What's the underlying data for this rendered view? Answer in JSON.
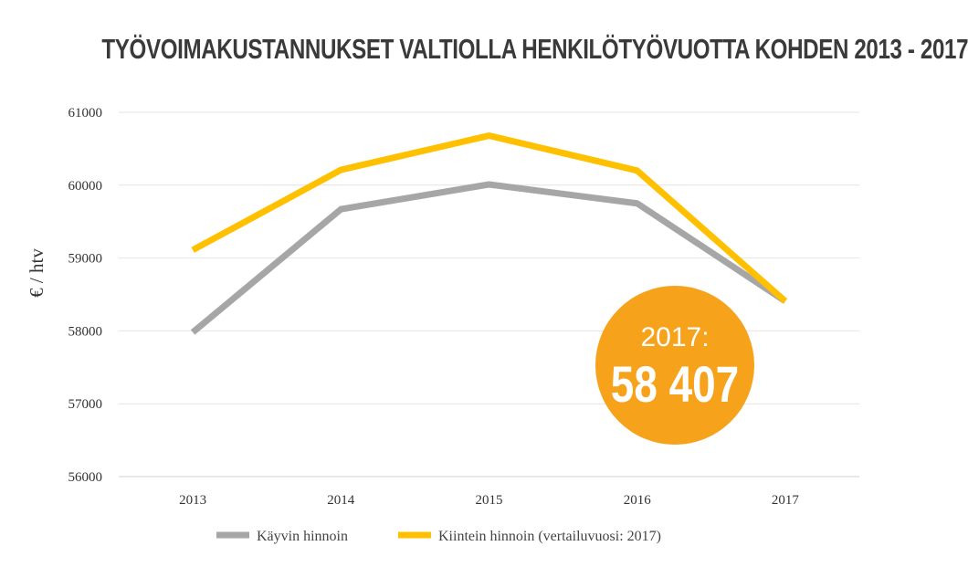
{
  "chart_data": {
    "type": "line",
    "title": "TYÖVOIMAKUSTANNUKSET VALTIOLLA HENKILÖTYÖVUOTTA KOHDEN 2013 - 2017",
    "xlabel": "",
    "ylabel": "€ / htv",
    "categories": [
      "2013",
      "2014",
      "2015",
      "2016",
      "2017"
    ],
    "ylim": [
      56000,
      61000
    ],
    "yticks": [
      "56000",
      "57000",
      "58000",
      "59000",
      "60000",
      "61000"
    ],
    "grid": true,
    "legend_position": "bottom",
    "series": [
      {
        "name": "Käyvin hinnoin",
        "color": "#a6a6a6",
        "values": [
          57980,
          59670,
          60010,
          59750,
          58407
        ]
      },
      {
        "name": "Kiintein hinnoin (vertailuvuosi: 2017)",
        "color": "#ffc000",
        "values": [
          59110,
          60210,
          60680,
          60200,
          58407
        ]
      }
    ],
    "annotation": {
      "year_label": "2017:",
      "value_label": "58 407",
      "color": "#f7a21b"
    }
  }
}
